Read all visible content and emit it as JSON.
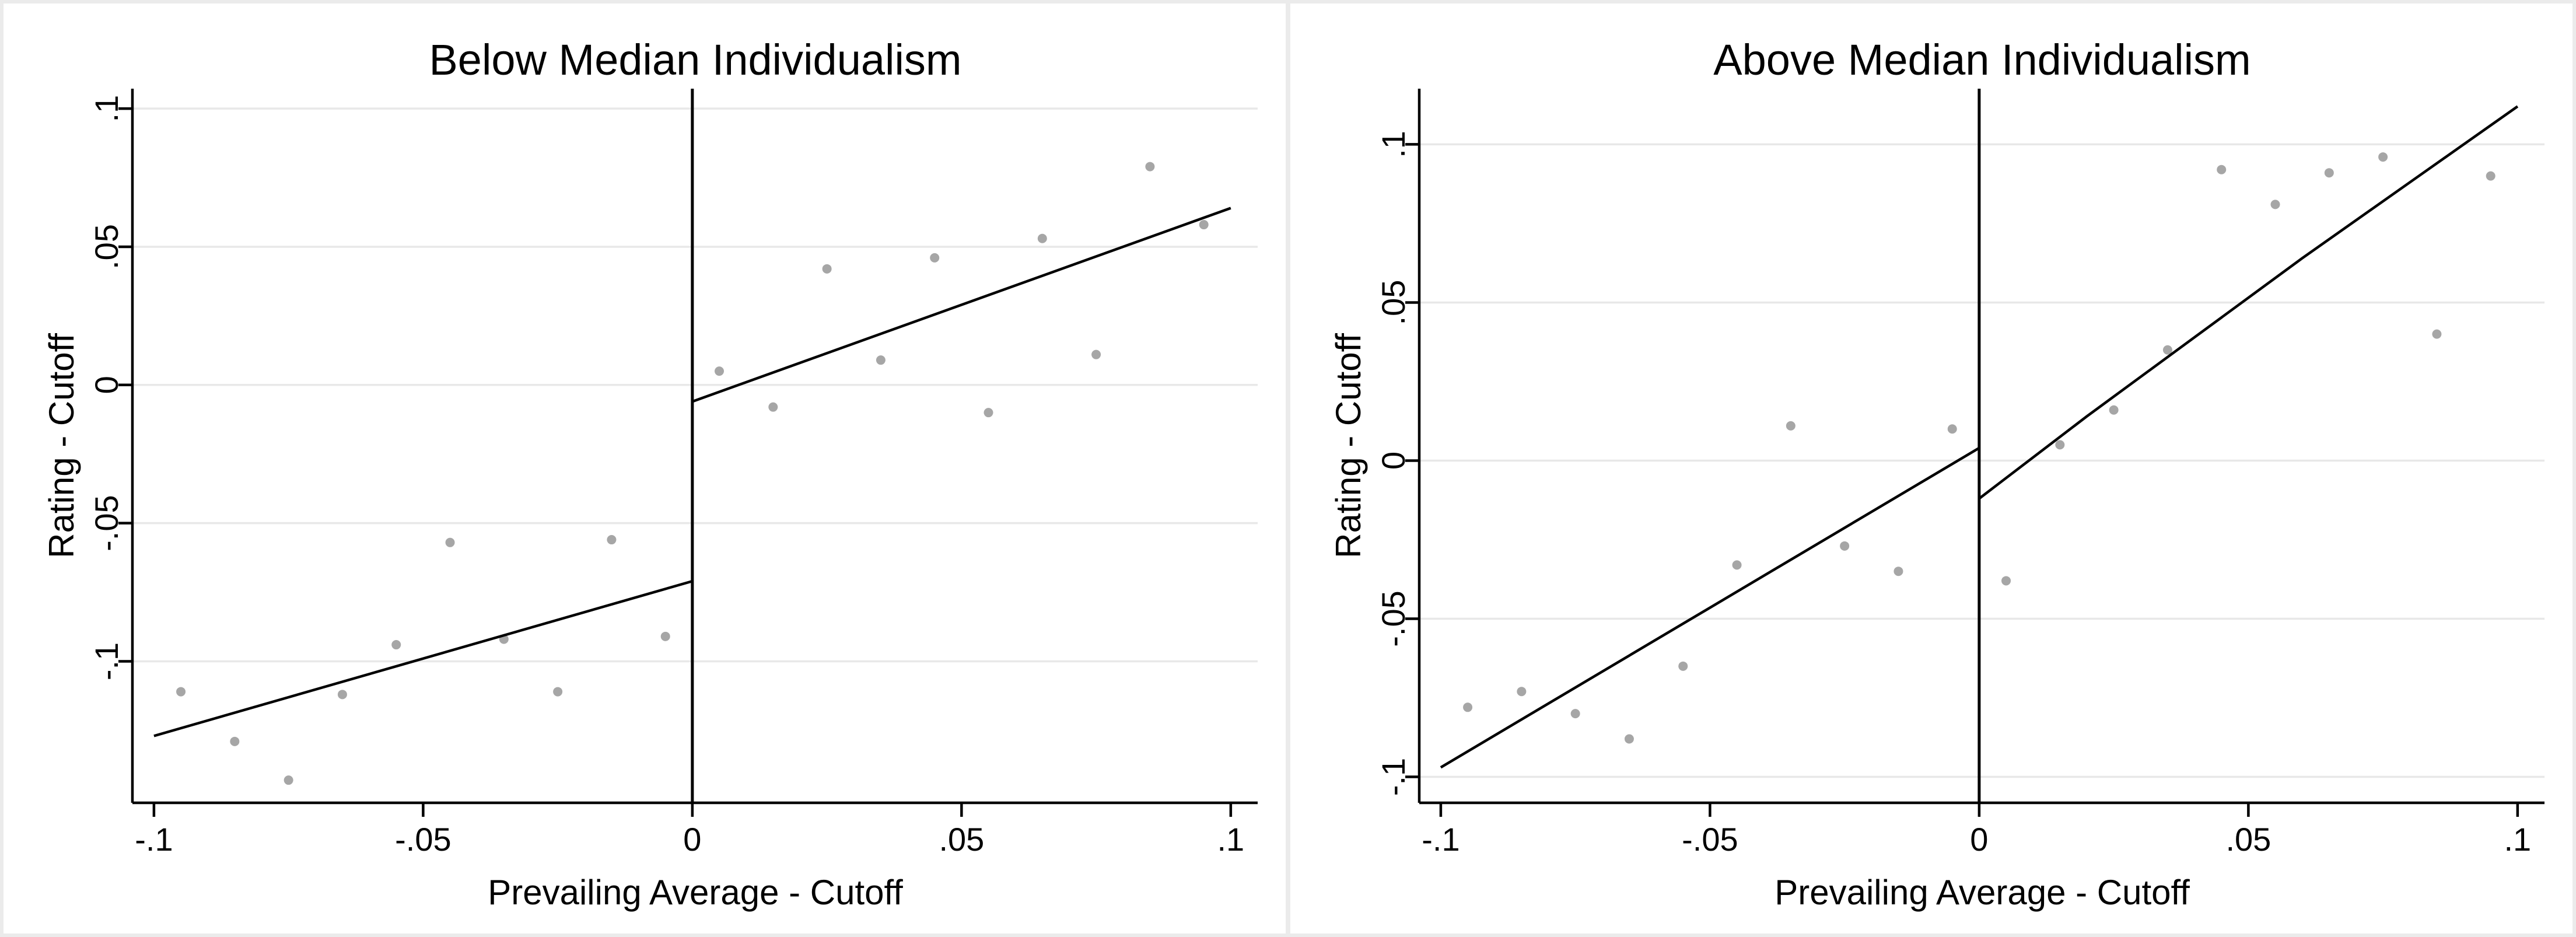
{
  "style": {
    "page_background": "#ebebeb",
    "panel_background": "#ffffff",
    "point_color": "#a6a6a6",
    "grid_color": "#e8e8e8",
    "axis_color": "#000000",
    "fit_line_color": "#000000"
  },
  "chart_data": [
    {
      "type": "scatter",
      "title": "Below Median Individualism",
      "xlabel": "Prevailing Average - Cutoff",
      "ylabel": "Rating - Cutoff",
      "xlim": [
        -0.104,
        0.105
      ],
      "ylim": [
        -0.1512,
        0.1072
      ],
      "grid": true,
      "cutoff_x": 0,
      "x_ticks": [
        {
          "value": -0.1,
          "label": "-.1"
        },
        {
          "value": -0.05,
          "label": "-.05"
        },
        {
          "value": 0,
          "label": "0"
        },
        {
          "value": 0.05,
          "label": ".05"
        },
        {
          "value": 0.1,
          "label": ".1"
        }
      ],
      "y_ticks": [
        {
          "value": 0.1,
          "label": ".1"
        },
        {
          "value": 0.05,
          "label": ".05"
        },
        {
          "value": 0,
          "label": "0"
        },
        {
          "value": -0.05,
          "label": "-.05"
        },
        {
          "value": -0.1,
          "label": "-.1"
        }
      ],
      "points": [
        [
          -0.095,
          -0.111
        ],
        [
          -0.085,
          -0.129
        ],
        [
          -0.075,
          -0.143
        ],
        [
          -0.065,
          -0.112
        ],
        [
          -0.055,
          -0.094
        ],
        [
          -0.045,
          -0.057
        ],
        [
          -0.035,
          -0.092
        ],
        [
          -0.025,
          -0.111
        ],
        [
          -0.015,
          -0.056
        ],
        [
          -0.005,
          -0.091
        ],
        [
          0.005,
          0.005
        ],
        [
          0.015,
          -0.008
        ],
        [
          0.025,
          0.042
        ],
        [
          0.035,
          0.009
        ],
        [
          0.045,
          0.046
        ],
        [
          0.055,
          -0.01
        ],
        [
          0.065,
          0.053
        ],
        [
          0.075,
          0.011
        ],
        [
          0.085,
          0.079
        ],
        [
          0.095,
          0.058
        ]
      ],
      "fit_lines": [
        {
          "name": "fit-line-left-of-cutoff",
          "points": [
            [
              -0.1,
              -0.127
            ],
            [
              0,
              -0.071
            ]
          ]
        },
        {
          "name": "fit-line-right-of-cutoff",
          "points": [
            [
              0,
              -0.006
            ],
            [
              0.1,
              0.064
            ]
          ]
        }
      ]
    },
    {
      "type": "scatter",
      "title": "Above Median Individualism",
      "xlabel": "Prevailing Average - Cutoff",
      "ylabel": "Rating - Cutoff",
      "xlim": [
        -0.104,
        0.105
      ],
      "ylim": [
        -0.1082,
        0.1176
      ],
      "grid": true,
      "cutoff_x": 0,
      "x_ticks": [
        {
          "value": -0.1,
          "label": "-.1"
        },
        {
          "value": -0.05,
          "label": "-.05"
        },
        {
          "value": 0,
          "label": "0"
        },
        {
          "value": 0.05,
          "label": ".05"
        },
        {
          "value": 0.1,
          "label": ".1"
        }
      ],
      "y_ticks": [
        {
          "value": 0.1,
          "label": ".1"
        },
        {
          "value": 0.05,
          "label": ".05"
        },
        {
          "value": 0,
          "label": "0"
        },
        {
          "value": -0.05,
          "label": "-.05"
        },
        {
          "value": -0.1,
          "label": "-.1"
        }
      ],
      "points": [
        [
          -0.095,
          -0.078
        ],
        [
          -0.085,
          -0.073
        ],
        [
          -0.075,
          -0.08
        ],
        [
          -0.065,
          -0.088
        ],
        [
          -0.055,
          -0.065
        ],
        [
          -0.045,
          -0.033
        ],
        [
          -0.035,
          0.011
        ],
        [
          -0.025,
          -0.027
        ],
        [
          -0.015,
          -0.035
        ],
        [
          -0.005,
          0.01
        ],
        [
          0.005,
          -0.038
        ],
        [
          0.015,
          0.005
        ],
        [
          0.025,
          0.016
        ],
        [
          0.035,
          0.035
        ],
        [
          0.045,
          0.092
        ],
        [
          0.055,
          0.081
        ],
        [
          0.065,
          0.091
        ],
        [
          0.075,
          0.096
        ],
        [
          0.085,
          0.04
        ],
        [
          0.095,
          0.09
        ]
      ],
      "fit_lines": [
        {
          "name": "fit-line-left-of-cutoff",
          "points": [
            [
              -0.1,
              -0.097
            ],
            [
              0,
              0.004
            ]
          ]
        },
        {
          "name": "fit-line-right-of-cutoff",
          "points": [
            [
              0,
              -0.012
            ],
            [
              0.02,
              0.014
            ],
            [
              0.04,
              0.039
            ],
            [
              0.06,
              0.064
            ],
            [
              0.08,
              0.088
            ],
            [
              0.1,
              0.112
            ]
          ]
        }
      ]
    }
  ]
}
